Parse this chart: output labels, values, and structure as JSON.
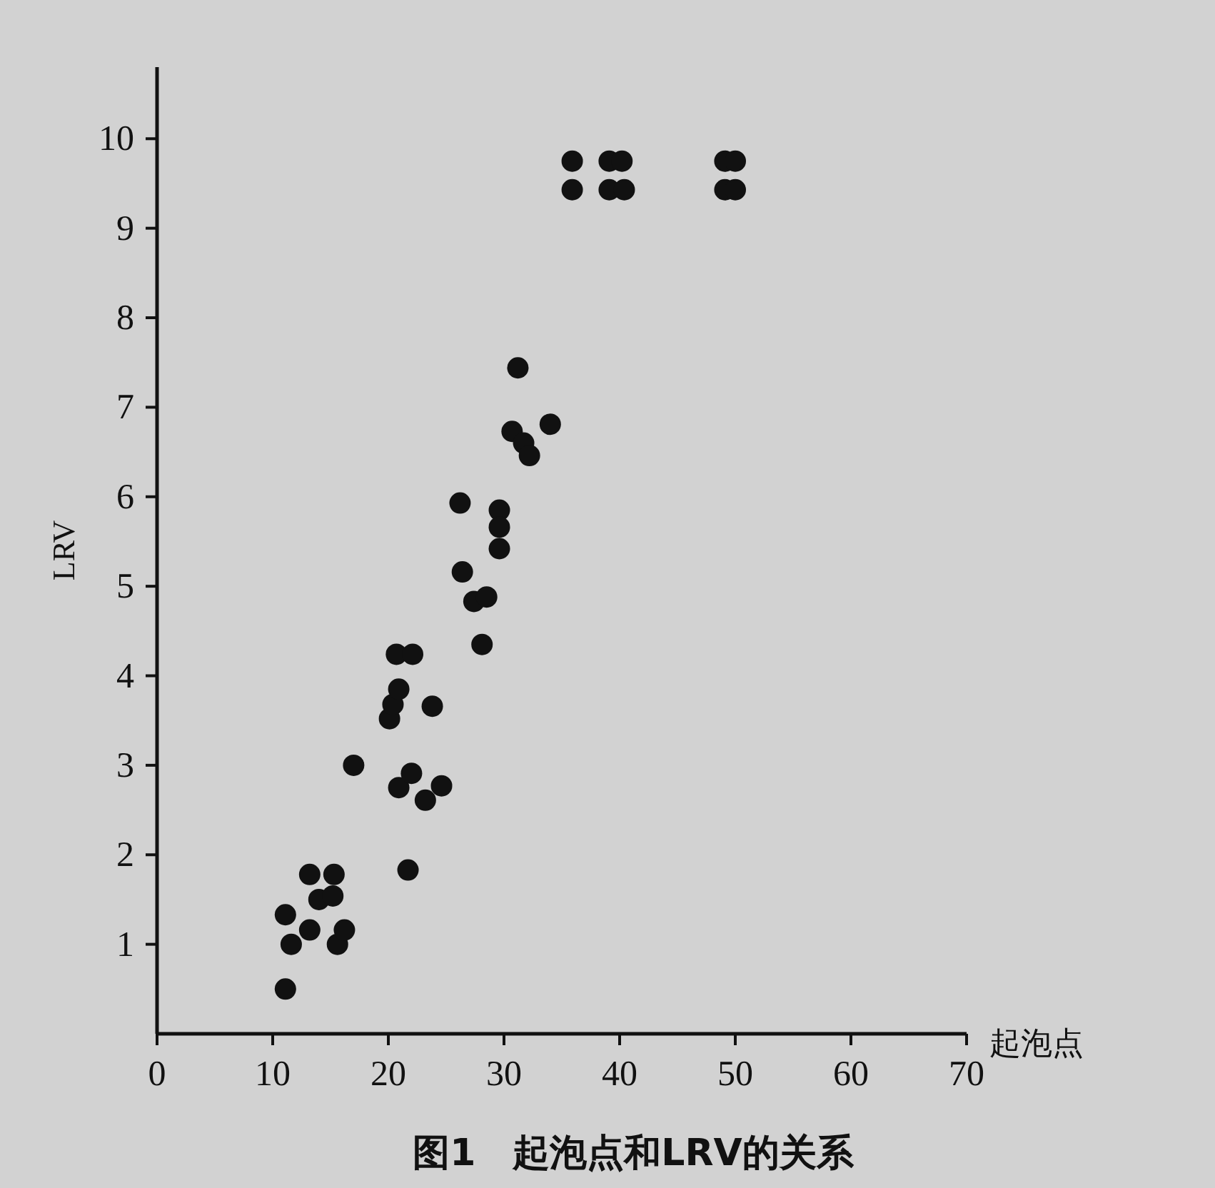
{
  "chart_data": {
    "type": "scatter",
    "title": "图1　起泡点和LRV的关系",
    "xlabel": "起泡点",
    "ylabel": "LRV",
    "xlim": [
      0,
      70
    ],
    "ylim": [
      0,
      10.8
    ],
    "xticks": [
      0,
      10,
      20,
      30,
      40,
      50,
      60,
      70
    ],
    "yticks": [
      1,
      2,
      3,
      4,
      5,
      6,
      7,
      8,
      9,
      10
    ],
    "grid": false,
    "marker": "circle",
    "series": [
      {
        "color": "#111111",
        "x": [
          11.1,
          11.1,
          11.6,
          13.2,
          13.2,
          14.0,
          15.3,
          15.2,
          15.6,
          16.2,
          17.0,
          20.1,
          20.4,
          20.9,
          20.7,
          22.1,
          20.9,
          22.0,
          23.2,
          24.6,
          23.8,
          21.7,
          26.2,
          26.4,
          27.4,
          28.5,
          28.1,
          29.6,
          29.6,
          29.6,
          31.2,
          30.7,
          31.7,
          32.2,
          34.0,
          35.9,
          35.9,
          39.1,
          39.1,
          40.2,
          40.4,
          49.1,
          50.0,
          49.1,
          50.0
        ],
        "values": [
          0.5,
          1.33,
          1.0,
          1.16,
          1.78,
          1.5,
          1.78,
          1.54,
          1.0,
          1.16,
          3.0,
          3.52,
          3.68,
          3.85,
          4.24,
          4.24,
          2.75,
          2.91,
          2.61,
          2.77,
          3.66,
          1.83,
          5.93,
          5.16,
          4.83,
          4.88,
          4.35,
          5.85,
          5.66,
          5.42,
          7.44,
          6.73,
          6.6,
          6.46,
          6.81,
          9.43,
          9.75,
          9.43,
          9.75,
          9.75,
          9.43,
          9.75,
          9.75,
          9.43,
          9.43
        ]
      }
    ]
  }
}
